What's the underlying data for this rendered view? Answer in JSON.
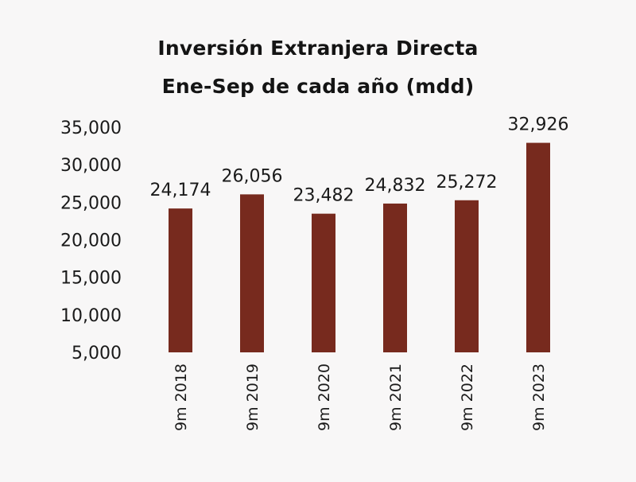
{
  "chart_data": {
    "type": "bar",
    "title": "Inversión Extranjera Directa",
    "subtitle": "Ene-Sep de cada año (mdd)",
    "categories": [
      "9m 2018",
      "9m 2019",
      "9m 2020",
      "9m 2021",
      "9m 2022",
      "9m 2023"
    ],
    "values": [
      24174,
      26056,
      23482,
      24832,
      25272,
      32926
    ],
    "data_labels": [
      "24,174",
      "26,056",
      "23,482",
      "24,832",
      "25,272",
      "32,926"
    ],
    "ylim": [
      5000,
      35000
    ],
    "yticks": [
      5000,
      10000,
      15000,
      20000,
      25000,
      30000,
      35000
    ],
    "ytick_labels": [
      "5,000",
      "10,000",
      "15,000",
      "20,000",
      "25,000",
      "30,000",
      "35,000"
    ],
    "bar_color": "#772a1e",
    "grid": false,
    "legend": "none"
  }
}
